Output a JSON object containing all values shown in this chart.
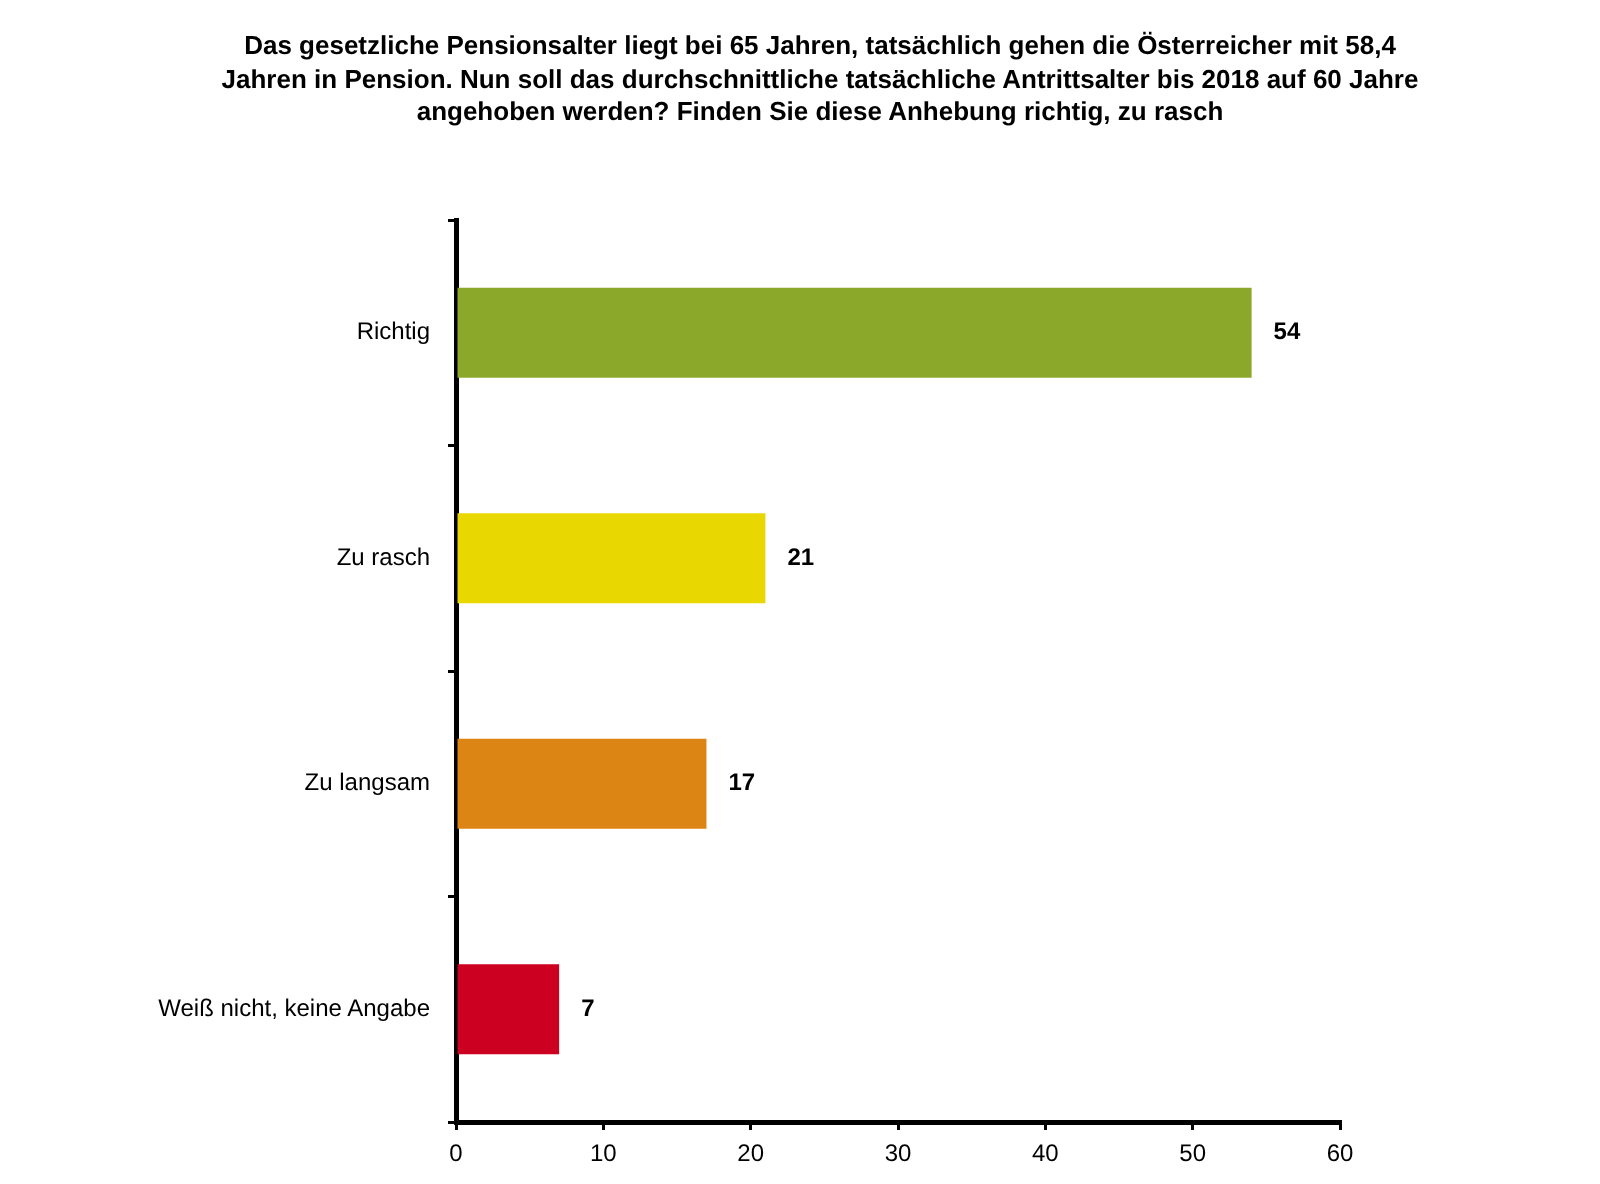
{
  "chart_data": {
    "type": "bar",
    "title": "Das gesetzliche Pensionsalter liegt bei 65 Jahren, tatsächlich gehen die Österreicher mit 58,4 Jahren in Pension. Nun soll das durchschnittliche tatsächliche Antrittsalter bis 2018 auf 60 Jahre angehoben werden? Finden Sie diese Anhebung richtig, zu rasch",
    "orientation": "horizontal",
    "categories": [
      "Richtig",
      "Zu rasch",
      "Zu langsam",
      "Weiß nicht, keine Angabe"
    ],
    "values": [
      54,
      21,
      17,
      7
    ],
    "colors": [
      "#8ca82a",
      "#e8d700",
      "#dc8414",
      "#cc0020"
    ],
    "xlim": [
      0,
      60
    ],
    "xticks": [
      0,
      10,
      20,
      30,
      40,
      50,
      60
    ],
    "data_labels": true
  }
}
